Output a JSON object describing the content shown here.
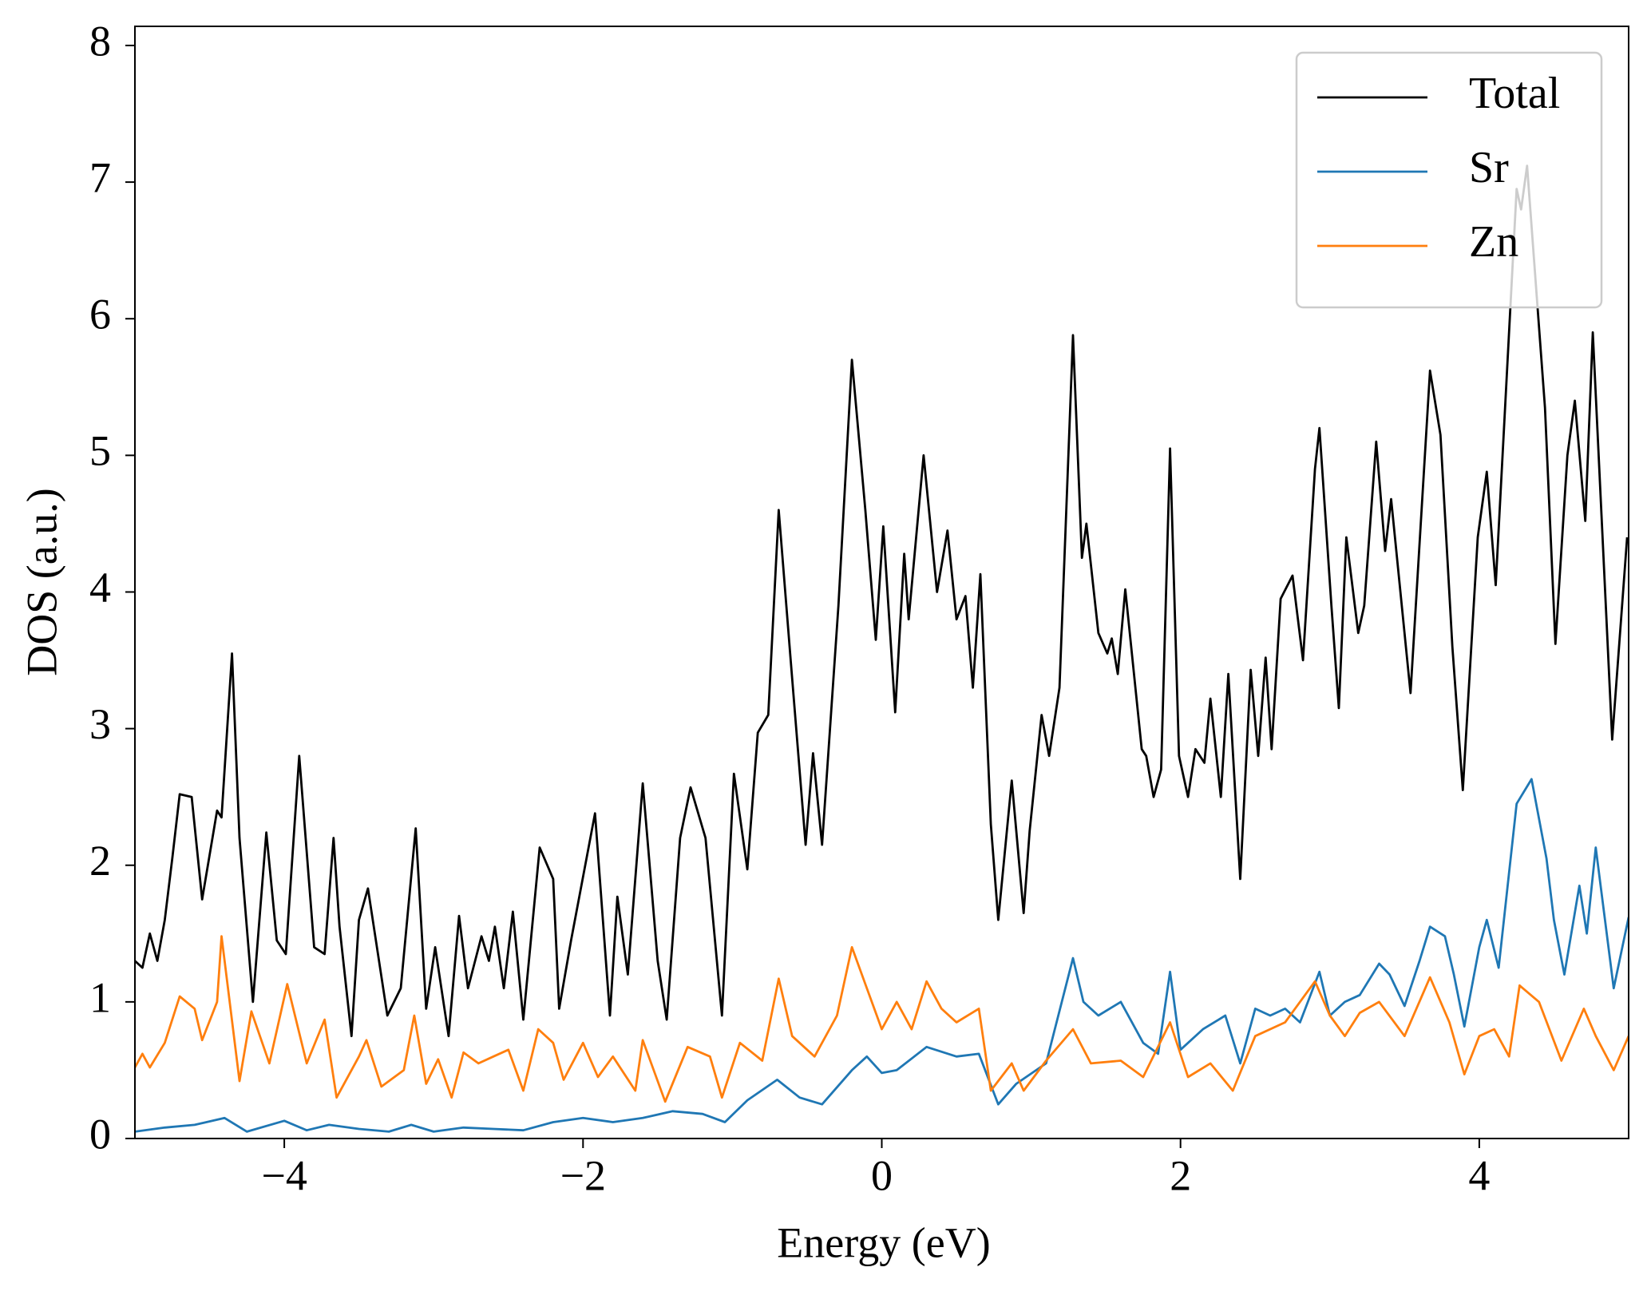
{
  "chart_data": {
    "type": "line",
    "xlabel": "Energy (eV)",
    "ylabel": "DOS (a.u.)",
    "xlim": [
      -5,
      5
    ],
    "ylim": [
      0,
      8.14
    ],
    "xticks": [
      {
        "value": -4,
        "label": "−4"
      },
      {
        "value": -2,
        "label": "−2"
      },
      0,
      2,
      4
    ],
    "yticks": [
      0,
      1,
      2,
      3,
      4,
      5,
      6,
      7,
      8
    ],
    "grid": false,
    "legend": "upper right",
    "series": [
      {
        "name": "Total",
        "color": "#000000",
        "x": [
          -5.0,
          -4.95,
          -4.9,
          -4.85,
          -4.8,
          -4.75,
          -4.7,
          -4.62,
          -4.55,
          -4.45,
          -4.42,
          -4.35,
          -4.3,
          -4.21,
          -4.12,
          -4.05,
          -3.99,
          -3.9,
          -3.8,
          -3.73,
          -3.67,
          -3.63,
          -3.55,
          -3.5,
          -3.44,
          -3.31,
          -3.22,
          -3.12,
          -3.05,
          -2.99,
          -2.9,
          -2.83,
          -2.77,
          -2.68,
          -2.63,
          -2.59,
          -2.53,
          -2.47,
          -2.4,
          -2.29,
          -2.2,
          -2.16,
          -2.08,
          -1.92,
          -1.82,
          -1.77,
          -1.7,
          -1.6,
          -1.5,
          -1.44,
          -1.35,
          -1.28,
          -1.18,
          -1.07,
          -0.99,
          -0.9,
          -0.83,
          -0.76,
          -0.69,
          -0.61,
          -0.51,
          -0.46,
          -0.4,
          -0.29,
          -0.2,
          -0.11,
          -0.04,
          0.01,
          0.09,
          0.15,
          0.18,
          0.28,
          0.37,
          0.44,
          0.5,
          0.56,
          0.61,
          0.66,
          0.73,
          0.78,
          0.87,
          0.95,
          0.99,
          1.07,
          1.12,
          1.19,
          1.28,
          1.34,
          1.37,
          1.45,
          1.51,
          1.54,
          1.58,
          1.63,
          1.74,
          1.77,
          1.82,
          1.87,
          1.93,
          1.99,
          2.05,
          2.1,
          2.16,
          2.2,
          2.27,
          2.32,
          2.4,
          2.47,
          2.52,
          2.57,
          2.61,
          2.67,
          2.75,
          2.82,
          2.9,
          2.93,
          3.01,
          3.06,
          3.11,
          3.19,
          3.23,
          3.31,
          3.37,
          3.41,
          3.54,
          3.67,
          3.74,
          3.82,
          3.89,
          3.99,
          4.05,
          4.11,
          4.25,
          4.28,
          4.32,
          4.44,
          4.51,
          4.59,
          4.64,
          4.71,
          4.76,
          4.89,
          4.99
        ],
        "values": [
          1.3,
          1.25,
          1.5,
          1.3,
          1.6,
          2.05,
          2.52,
          2.5,
          1.75,
          2.4,
          2.35,
          3.55,
          2.2,
          1.0,
          2.24,
          1.45,
          1.35,
          2.8,
          1.4,
          1.35,
          2.2,
          1.55,
          0.75,
          1.6,
          1.83,
          0.9,
          1.1,
          2.27,
          0.95,
          1.4,
          0.75,
          1.63,
          1.1,
          1.48,
          1.3,
          1.55,
          1.1,
          1.66,
          0.87,
          2.13,
          1.9,
          0.95,
          1.45,
          2.38,
          0.9,
          1.77,
          1.2,
          2.6,
          1.3,
          0.87,
          2.2,
          2.57,
          2.2,
          0.9,
          2.67,
          1.97,
          2.97,
          3.1,
          4.6,
          3.5,
          2.15,
          2.82,
          2.15,
          3.9,
          5.7,
          4.6,
          3.65,
          4.48,
          3.12,
          4.28,
          3.8,
          5.0,
          4.0,
          4.45,
          3.8,
          3.97,
          3.3,
          4.13,
          2.3,
          1.6,
          2.62,
          1.65,
          2.25,
          3.1,
          2.8,
          3.3,
          5.88,
          4.25,
          4.5,
          3.7,
          3.55,
          3.66,
          3.4,
          4.02,
          2.85,
          2.8,
          2.5,
          2.7,
          5.05,
          2.8,
          2.5,
          2.85,
          2.75,
          3.22,
          2.5,
          3.4,
          1.9,
          3.43,
          2.8,
          3.52,
          2.85,
          3.95,
          4.12,
          3.5,
          4.9,
          5.2,
          3.9,
          3.15,
          4.4,
          3.7,
          3.9,
          5.1,
          4.3,
          4.68,
          3.26,
          5.62,
          5.15,
          3.6,
          2.55,
          4.4,
          4.88,
          4.05,
          6.95,
          6.8,
          7.12,
          5.35,
          3.62,
          5.0,
          5.4,
          4.52,
          5.9,
          2.92,
          4.4
        ]
      },
      {
        "name": "Sr",
        "color": "#1f77b4",
        "x": [
          -5.0,
          -4.8,
          -4.6,
          -4.4,
          -4.25,
          -4.0,
          -3.85,
          -3.7,
          -3.5,
          -3.3,
          -3.15,
          -3.0,
          -2.8,
          -2.6,
          -2.4,
          -2.2,
          -2.0,
          -1.8,
          -1.6,
          -1.4,
          -1.2,
          -1.05,
          -0.9,
          -0.7,
          -0.55,
          -0.4,
          -0.2,
          -0.1,
          0.0,
          0.1,
          0.3,
          0.5,
          0.65,
          0.78,
          0.9,
          1.1,
          1.28,
          1.35,
          1.45,
          1.6,
          1.75,
          1.85,
          1.93,
          2.0,
          2.15,
          2.3,
          2.4,
          2.5,
          2.6,
          2.7,
          2.8,
          2.93,
          3.0,
          3.1,
          3.2,
          3.33,
          3.4,
          3.5,
          3.6,
          3.67,
          3.77,
          3.83,
          3.9,
          4.0,
          4.05,
          4.13,
          4.25,
          4.35,
          4.45,
          4.5,
          4.57,
          4.67,
          4.72,
          4.78,
          4.9,
          5.0
        ],
        "values": [
          0.05,
          0.08,
          0.1,
          0.15,
          0.05,
          0.13,
          0.06,
          0.1,
          0.07,
          0.05,
          0.1,
          0.05,
          0.08,
          0.07,
          0.06,
          0.12,
          0.15,
          0.12,
          0.15,
          0.2,
          0.18,
          0.12,
          0.28,
          0.43,
          0.3,
          0.25,
          0.5,
          0.6,
          0.48,
          0.5,
          0.67,
          0.6,
          0.62,
          0.25,
          0.4,
          0.55,
          1.32,
          1.0,
          0.9,
          1.0,
          0.7,
          0.62,
          1.22,
          0.65,
          0.8,
          0.9,
          0.55,
          0.95,
          0.9,
          0.95,
          0.85,
          1.22,
          0.9,
          1.0,
          1.05,
          1.28,
          1.2,
          0.97,
          1.3,
          1.55,
          1.48,
          1.2,
          0.82,
          1.4,
          1.6,
          1.25,
          2.45,
          2.63,
          2.05,
          1.6,
          1.2,
          1.85,
          1.5,
          2.13,
          1.1,
          1.62
        ]
      },
      {
        "name": "Zn",
        "color": "#ff7f0e",
        "x": [
          -5.0,
          -4.95,
          -4.9,
          -4.8,
          -4.7,
          -4.6,
          -4.55,
          -4.45,
          -4.42,
          -4.3,
          -4.22,
          -4.1,
          -3.98,
          -3.85,
          -3.73,
          -3.65,
          -3.5,
          -3.45,
          -3.35,
          -3.2,
          -3.13,
          -3.05,
          -2.97,
          -2.88,
          -2.8,
          -2.7,
          -2.6,
          -2.5,
          -2.4,
          -2.3,
          -2.2,
          -2.13,
          -2.0,
          -1.9,
          -1.8,
          -1.65,
          -1.6,
          -1.45,
          -1.3,
          -1.15,
          -1.07,
          -0.95,
          -0.8,
          -0.69,
          -0.6,
          -0.45,
          -0.3,
          -0.2,
          -0.1,
          0.0,
          0.1,
          0.2,
          0.3,
          0.4,
          0.5,
          0.65,
          0.73,
          0.87,
          0.95,
          1.1,
          1.28,
          1.4,
          1.6,
          1.75,
          1.93,
          2.05,
          2.2,
          2.35,
          2.5,
          2.7,
          2.9,
          3.0,
          3.1,
          3.2,
          3.33,
          3.5,
          3.67,
          3.8,
          3.9,
          4.0,
          4.1,
          4.2,
          4.27,
          4.4,
          4.55,
          4.7,
          4.78,
          4.9,
          5.0
        ],
        "values": [
          0.52,
          0.62,
          0.52,
          0.7,
          1.04,
          0.95,
          0.72,
          1.0,
          1.48,
          0.42,
          0.93,
          0.55,
          1.13,
          0.55,
          0.87,
          0.3,
          0.6,
          0.72,
          0.38,
          0.5,
          0.9,
          0.4,
          0.58,
          0.3,
          0.63,
          0.55,
          0.6,
          0.65,
          0.35,
          0.8,
          0.7,
          0.43,
          0.7,
          0.45,
          0.6,
          0.35,
          0.72,
          0.27,
          0.67,
          0.6,
          0.3,
          0.7,
          0.57,
          1.17,
          0.75,
          0.6,
          0.9,
          1.4,
          1.1,
          0.8,
          1.0,
          0.8,
          1.15,
          0.95,
          0.85,
          0.95,
          0.35,
          0.55,
          0.35,
          0.57,
          0.8,
          0.55,
          0.57,
          0.45,
          0.85,
          0.45,
          0.55,
          0.35,
          0.75,
          0.85,
          1.15,
          0.9,
          0.75,
          0.92,
          1.0,
          0.75,
          1.18,
          0.85,
          0.47,
          0.75,
          0.8,
          0.6,
          1.12,
          1.0,
          0.57,
          0.95,
          0.75,
          0.5,
          0.75
        ]
      }
    ]
  }
}
